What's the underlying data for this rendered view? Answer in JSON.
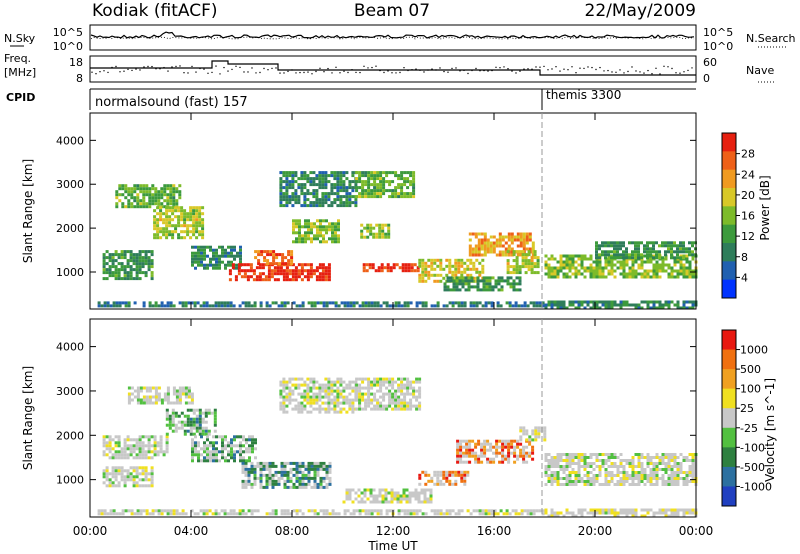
{
  "header": {
    "station": "Kodiak (fitACF)",
    "beam": "Beam 07",
    "date": "22/May/2009"
  },
  "left_labels": {
    "nsky": "N.Sky",
    "nsky_ticks": [
      "10^5",
      "10^0"
    ],
    "freq_line1": "Freq.",
    "freq_line2": "[MHz]",
    "freq_ticks": [
      "18",
      "8"
    ],
    "cpid": "CPID"
  },
  "right_labels": {
    "nsearch": "N.Search",
    "nsearch_ticks": [
      "10^5",
      "10^0"
    ],
    "nave": "Nave",
    "nave_ticks": [
      "60",
      "0"
    ]
  },
  "cpid_segments": [
    {
      "label": "normalsound (fast) 157",
      "start_hour": 0
    },
    {
      "label": "themis 3300",
      "start_hour": 18
    }
  ],
  "chart_data": [
    {
      "type": "heatmap",
      "name": "power",
      "ylabel": "Slant Range [km]",
      "ylim": [
        180,
        4600
      ],
      "y_ticks": [
        "4000",
        "3000",
        "2000",
        "1000"
      ],
      "x_hours": [
        0,
        24
      ],
      "colorbar": {
        "label": "Power [dB]",
        "ticks": [
          "28",
          "24",
          "20",
          "16",
          "12",
          "8",
          "4"
        ],
        "colors": [
          "#0033ff",
          "#2060b0",
          "#2e7d5a",
          "#3c9a3c",
          "#7dbb2a",
          "#d8c828",
          "#f09a20",
          "#ee6018",
          "#e62010"
        ]
      },
      "echo_regions": [
        {
          "t0": 0.3,
          "t1": 18.0,
          "r0": 200,
          "r1": 330,
          "level": 0.25
        },
        {
          "t0": 0.5,
          "t1": 2.5,
          "r0": 850,
          "r1": 1500,
          "level": 0.35
        },
        {
          "t0": 1.0,
          "t1": 3.5,
          "r0": 2500,
          "r1": 3000,
          "level": 0.45
        },
        {
          "t0": 2.5,
          "t1": 4.5,
          "r0": 1800,
          "r1": 2500,
          "level": 0.55
        },
        {
          "t0": 4.0,
          "t1": 6.0,
          "r0": 1100,
          "r1": 1600,
          "level": 0.3
        },
        {
          "t0": 5.5,
          "t1": 9.5,
          "r0": 800,
          "r1": 1200,
          "level": 0.95
        },
        {
          "t0": 6.5,
          "t1": 8.0,
          "r0": 1200,
          "r1": 1500,
          "level": 0.85
        },
        {
          "t0": 7.5,
          "t1": 10.5,
          "r0": 2500,
          "r1": 3300,
          "level": 0.3
        },
        {
          "t0": 8.0,
          "t1": 9.8,
          "r0": 1700,
          "r1": 2200,
          "level": 0.5
        },
        {
          "t0": 10.7,
          "t1": 11.8,
          "r0": 1800,
          "r1": 2100,
          "level": 0.5
        },
        {
          "t0": 10.5,
          "t1": 12.8,
          "r0": 2700,
          "r1": 3300,
          "level": 0.45
        },
        {
          "t0": 10.8,
          "t1": 13.0,
          "r0": 1000,
          "r1": 1200,
          "level": 0.9
        },
        {
          "t0": 13.0,
          "t1": 15.5,
          "r0": 800,
          "r1": 1300,
          "level": 0.6
        },
        {
          "t0": 15.0,
          "t1": 17.5,
          "r0": 1400,
          "r1": 1900,
          "level": 0.7
        },
        {
          "t0": 14.0,
          "t1": 17.0,
          "r0": 600,
          "r1": 900,
          "level": 0.35
        },
        {
          "t0": 16.5,
          "t1": 17.8,
          "r0": 1000,
          "r1": 1500,
          "level": 0.55
        },
        {
          "t0": 18.0,
          "t1": 24.0,
          "r0": 900,
          "r1": 1400,
          "level": 0.5
        },
        {
          "t0": 20.0,
          "t1": 24.0,
          "r0": 1300,
          "r1": 1700,
          "level": 0.35
        },
        {
          "t0": 18.0,
          "t1": 24.0,
          "r0": 200,
          "r1": 350,
          "level": 0.3
        }
      ]
    },
    {
      "type": "heatmap",
      "name": "velocity",
      "ylabel": "Slant Range [km]",
      "ylim": [
        180,
        4600
      ],
      "y_ticks": [
        "4000",
        "3000",
        "2000",
        "1000"
      ],
      "x_hours": [
        0,
        24
      ],
      "x_ticks": [
        "00:00",
        "04:00",
        "08:00",
        "12:00",
        "16:00",
        "20:00",
        "00:00"
      ],
      "xlabel": "Time UT",
      "colorbar": {
        "label": "Velocity [m s^-1]",
        "ticks": [
          "1000",
          "500",
          "100",
          "25",
          "-25",
          "-100",
          "-500",
          "-1000"
        ],
        "colors": [
          "#2040c0",
          "#2c70a0",
          "#2e8040",
          "#52c040",
          "#c8c8c8",
          "#f0e020",
          "#f0a020",
          "#f07010",
          "#e81810"
        ]
      },
      "echo_regions": [
        {
          "t0": 0.3,
          "t1": 18.0,
          "r0": 200,
          "r1": 330,
          "level": 0.5
        },
        {
          "t0": 0.5,
          "t1": 3.0,
          "r0": 1500,
          "r1": 2000,
          "level": 0.5
        },
        {
          "t0": 0.5,
          "t1": 2.5,
          "r0": 850,
          "r1": 1300,
          "level": 0.5
        },
        {
          "t0": 1.5,
          "t1": 4.0,
          "r0": 2700,
          "r1": 3100,
          "level": 0.5
        },
        {
          "t0": 3.0,
          "t1": 5.0,
          "r0": 2000,
          "r1": 2600,
          "level": 0.3
        },
        {
          "t0": 4.0,
          "t1": 6.5,
          "r0": 1400,
          "r1": 2000,
          "level": 0.3
        },
        {
          "t0": 6.0,
          "t1": 9.5,
          "r0": 800,
          "r1": 1400,
          "level": 0.25
        },
        {
          "t0": 7.5,
          "t1": 10.5,
          "r0": 2500,
          "r1": 3300,
          "level": 0.5
        },
        {
          "t0": 10.5,
          "t1": 13.0,
          "r0": 2600,
          "r1": 3300,
          "level": 0.5
        },
        {
          "t0": 10.0,
          "t1": 13.5,
          "r0": 500,
          "r1": 800,
          "level": 0.5
        },
        {
          "t0": 13.0,
          "t1": 15.0,
          "r0": 900,
          "r1": 1200,
          "level": 0.8
        },
        {
          "t0": 14.5,
          "t1": 17.5,
          "r0": 1400,
          "r1": 1900,
          "level": 0.82
        },
        {
          "t0": 17.0,
          "t1": 18.0,
          "r0": 1900,
          "r1": 2200,
          "level": 0.5
        },
        {
          "t0": 18.0,
          "t1": 24.0,
          "r0": 900,
          "r1": 1600,
          "level": 0.5
        },
        {
          "t0": 18.0,
          "t1": 24.0,
          "r0": 200,
          "r1": 350,
          "level": 0.55
        }
      ]
    }
  ]
}
